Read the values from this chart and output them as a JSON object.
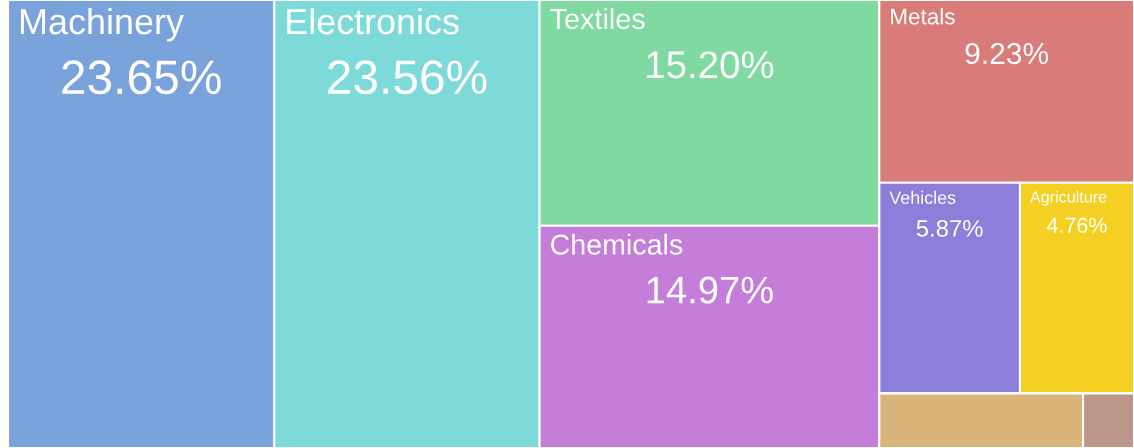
{
  "chart_data": {
    "type": "other",
    "categories": [
      "Machinery",
      "Electronics",
      "Textiles",
      "Chemicals",
      "Metals",
      "Vehicles",
      "Agriculture",
      null,
      null
    ],
    "values": [
      23.65,
      23.56,
      15.2,
      14.97,
      9.23,
      5.87,
      4.76,
      null,
      null
    ],
    "value_labels": [
      "23.65%",
      "23.56%",
      "15.20%",
      "14.97%",
      "9.23%",
      "5.87%",
      "4.76%",
      null,
      null
    ],
    "colors": [
      "#7ba3db",
      "#7ddad9",
      "#7fd9a0",
      "#c47ed9",
      "#d97b79",
      "#8d7ed9",
      "#f4d023",
      "#d9b47b",
      "#bc9689"
    ]
  }
}
